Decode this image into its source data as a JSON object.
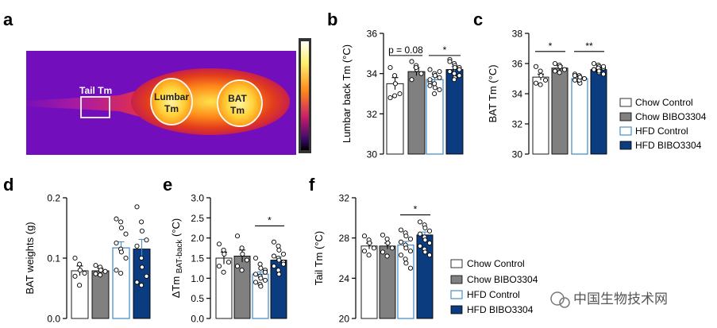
{
  "colors": {
    "chow_control": "#ffffff",
    "chow_bibo": "#808080",
    "hfd_control": "#ffffff",
    "hfd_control_stroke": "#4a90c8",
    "hfd_bibo": "#0c3c80"
  },
  "panel_a": {
    "label": "a",
    "tail_label": "Tail Tm",
    "lumbar_label_1": "Lumbar",
    "lumbar_label_2": "Tm",
    "bat_label_1": "BAT",
    "bat_label_2": "Tm"
  },
  "legend_1": [
    "Chow Control",
    "Chow BIBO3304",
    "HFD Control",
    "HFD BIBO3304"
  ],
  "legend_2": [
    "Chow Control",
    "Chow BIBO3304",
    "HFD Control",
    "HFD BIBO3304"
  ],
  "watermark": "中国生物技术网",
  "chart_data": [
    {
      "id": "b",
      "panel": "b",
      "type": "bar",
      "ylabel": "Lumbar back Tm (°C)",
      "ylim": [
        30,
        36
      ],
      "yticks": [
        "30",
        "32",
        "34",
        "36"
      ],
      "groups": [
        "Chow Control",
        "Chow BIBO3304",
        "HFD Control",
        "HFD BIBO3304"
      ],
      "values": [
        33.5,
        34.1,
        33.7,
        34.2
      ],
      "errors": [
        0.3,
        0.2,
        0.15,
        0.15
      ],
      "points": [
        [
          34.3,
          33.9,
          33.5,
          33.0,
          32.8,
          32.9
        ],
        [
          34.6,
          34.4,
          34.2,
          34.0,
          33.7,
          34.3
        ],
        [
          34.2,
          34.0,
          33.9,
          33.8,
          33.6,
          33.5,
          33.3,
          33.2,
          33.7,
          33.0,
          33.9,
          34.1,
          33.4
        ],
        [
          34.7,
          34.5,
          34.4,
          34.3,
          34.1,
          34.0,
          33.8,
          34.2,
          34.6,
          33.7,
          34.3,
          33.9
        ]
      ],
      "comparisons": [
        {
          "from": 0,
          "to": 1,
          "y": 34.9,
          "text": "p = 0.08",
          "textsize": 12
        },
        {
          "from": 2,
          "to": 3,
          "y": 34.9,
          "text": "*",
          "textsize": 14
        }
      ]
    },
    {
      "id": "c",
      "panel": "c",
      "type": "bar",
      "ylabel": "BAT Tm (°C)",
      "ylim": [
        30,
        38
      ],
      "yticks": [
        "30",
        "32",
        "34",
        "36",
        "38"
      ],
      "groups": [
        "Chow Control",
        "Chow BIBO3304",
        "HFD Control",
        "HFD BIBO3304"
      ],
      "values": [
        35.1,
        35.7,
        35.0,
        35.6
      ],
      "errors": [
        0.2,
        0.15,
        0.1,
        0.1
      ],
      "points": [
        [
          35.8,
          35.5,
          35.2,
          34.9,
          34.7,
          34.6
        ],
        [
          36.0,
          35.9,
          35.8,
          35.6,
          35.5,
          35.4
        ],
        [
          35.3,
          35.2,
          35.1,
          35.0,
          34.9,
          34.8,
          34.7,
          35.0,
          35.2,
          34.9,
          35.1
        ],
        [
          36.0,
          35.9,
          35.8,
          35.7,
          35.6,
          35.5,
          35.4,
          35.3,
          35.6,
          35.7,
          35.5,
          35.8
        ]
      ],
      "comparisons": [
        {
          "from": 0,
          "to": 1,
          "y": 36.8,
          "text": "*",
          "textsize": 14
        },
        {
          "from": 2,
          "to": 3,
          "y": 36.8,
          "text": "**",
          "textsize": 14
        }
      ]
    },
    {
      "id": "d",
      "panel": "d",
      "type": "bar",
      "ylabel": "BAT weights (g)",
      "ylim": [
        0.0,
        0.2
      ],
      "yticks": [
        "0.0",
        "0.1",
        "0.2"
      ],
      "groups": [
        "Chow Control",
        "Chow BIBO3304",
        "HFD Control",
        "HFD BIBO3304"
      ],
      "values": [
        0.079,
        0.079,
        0.117,
        0.115
      ],
      "errors": [
        0.008,
        0.004,
        0.01,
        0.016
      ],
      "points": [
        [
          0.1,
          0.09,
          0.08,
          0.075,
          0.07,
          0.055
        ],
        [
          0.088,
          0.085,
          0.08,
          0.078,
          0.074,
          0.072
        ],
        [
          0.165,
          0.16,
          0.15,
          0.14,
          0.125,
          0.115,
          0.11,
          0.1,
          0.08,
          0.075
        ],
        [
          0.185,
          0.16,
          0.145,
          0.13,
          0.12,
          0.1,
          0.085,
          0.07,
          0.06,
          0.055
        ]
      ],
      "comparisons": []
    },
    {
      "id": "e",
      "panel": "e",
      "type": "bar",
      "ylabel_main": "ΔTm",
      "ylabel_sub": "BAT-back",
      "ylabel_unit": "(°C)",
      "ylim": [
        0.0,
        3.0
      ],
      "yticks": [
        "0.0",
        "0.5",
        "1.0",
        "1.5",
        "2.0",
        "2.5",
        "3.0"
      ],
      "groups": [
        "Chow Control",
        "Chow BIBO3304",
        "HFD Control",
        "HFD BIBO3304"
      ],
      "values": [
        1.5,
        1.55,
        1.1,
        1.45
      ],
      "errors": [
        0.15,
        0.15,
        0.06,
        0.08
      ],
      "points": [
        [
          1.85,
          1.7,
          1.6,
          1.4,
          1.3,
          1.15
        ],
        [
          2.05,
          1.75,
          1.6,
          1.45,
          1.3,
          1.2
        ],
        [
          1.5,
          1.35,
          1.25,
          1.2,
          1.1,
          1.05,
          1.0,
          0.95,
          0.9,
          0.85,
          0.8,
          1.15
        ],
        [
          1.9,
          1.8,
          1.7,
          1.6,
          1.55,
          1.5,
          1.45,
          1.4,
          1.3,
          1.2,
          1.1,
          1.35
        ]
      ],
      "comparisons": [
        {
          "from": 2,
          "to": 3,
          "y": 2.3,
          "text": "*",
          "textsize": 14
        }
      ]
    },
    {
      "id": "f",
      "panel": "f",
      "type": "bar",
      "ylabel": "Tail Tm (°C)",
      "ylim": [
        20,
        32
      ],
      "yticks": [
        "20",
        "24",
        "28",
        "32"
      ],
      "groups": [
        "Chow Control",
        "Chow BIBO3304",
        "HFD Control",
        "HFD BIBO3304"
      ],
      "values": [
        27.2,
        27.2,
        27.3,
        28.3
      ],
      "errors": [
        0.3,
        0.3,
        0.35,
        0.3
      ],
      "points": [
        [
          28.2,
          27.8,
          27.5,
          27.0,
          26.7,
          26.3
        ],
        [
          28.3,
          27.9,
          27.5,
          27.0,
          26.6,
          26.2
        ],
        [
          28.8,
          28.5,
          28.2,
          27.9,
          27.6,
          27.3,
          27.0,
          26.7,
          26.3,
          25.9,
          25.5,
          25.0
        ],
        [
          29.6,
          29.3,
          29.0,
          28.7,
          28.4,
          28.1,
          27.8,
          27.5,
          27.2,
          26.9,
          26.6,
          26.3
        ]
      ],
      "comparisons": [
        {
          "from": 2,
          "to": 3,
          "y": 30.3,
          "text": "*",
          "textsize": 14
        }
      ]
    }
  ]
}
